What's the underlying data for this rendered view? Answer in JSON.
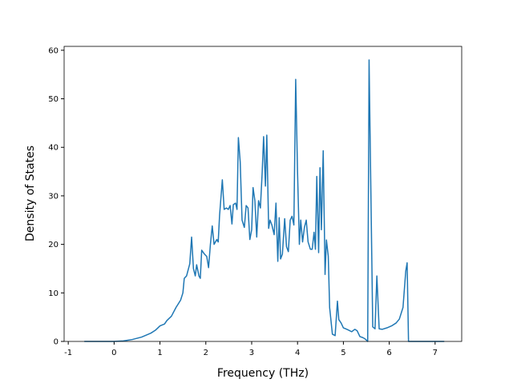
{
  "chart_data": {
    "type": "line",
    "xlabel": "Frequency (THz)",
    "ylabel": "Density of States",
    "xlim": [
      -1.09,
      7.58
    ],
    "ylim": [
      0,
      60.8
    ],
    "xticks": [
      -1,
      0,
      1,
      2,
      3,
      4,
      5,
      6,
      7
    ],
    "yticks": [
      0,
      10,
      20,
      30,
      40,
      50,
      60
    ],
    "grid": false,
    "series": [
      {
        "color": "#1f77b4",
        "x": [
          -0.65,
          0,
          0.2,
          0.4,
          0.6,
          0.8,
          0.9,
          1.0,
          1.1,
          1.15,
          1.25,
          1.35,
          1.45,
          1.5,
          1.53,
          1.58,
          1.65,
          1.69,
          1.73,
          1.77,
          1.8,
          1.85,
          1.88,
          1.91,
          1.97,
          2.02,
          2.06,
          2.1,
          2.14,
          2.18,
          2.24,
          2.27,
          2.3,
          2.36,
          2.4,
          2.45,
          2.49,
          2.53,
          2.57,
          2.6,
          2.65,
          2.68,
          2.71,
          2.75,
          2.79,
          2.84,
          2.88,
          2.92,
          2.96,
          3.0,
          3.03,
          3.07,
          3.11,
          3.15,
          3.19,
          3.23,
          3.26,
          3.3,
          3.33,
          3.37,
          3.4,
          3.44,
          3.49,
          3.53,
          3.57,
          3.6,
          3.63,
          3.67,
          3.72,
          3.76,
          3.8,
          3.84,
          3.88,
          3.92,
          3.96,
          4.0,
          4.04,
          4.07,
          4.11,
          4.15,
          4.19,
          4.23,
          4.28,
          4.32,
          4.36,
          4.39,
          4.42,
          4.46,
          4.49,
          4.52,
          4.56,
          4.6,
          4.63,
          4.67,
          4.7,
          4.76,
          4.82,
          4.87,
          4.9,
          4.95,
          5.0,
          5.05,
          5.12,
          5.18,
          5.25,
          5.3,
          5.36,
          5.42,
          5.46,
          5.5,
          5.53,
          5.56,
          5.64,
          5.69,
          5.73,
          5.78,
          5.85,
          5.95,
          6.05,
          6.15,
          6.22,
          6.3,
          6.36,
          6.39,
          6.42,
          7.2
        ],
        "values": [
          0,
          0,
          0.1,
          0.4,
          0.9,
          1.7,
          2.3,
          3.2,
          3.6,
          4.3,
          5.2,
          7,
          8.5,
          10,
          13,
          13.5,
          16,
          21.5,
          15,
          13.5,
          15.8,
          13.5,
          13,
          18.8,
          18,
          17.5,
          15.2,
          20,
          23.8,
          20,
          21,
          20.5,
          26,
          33.3,
          27.2,
          27.5,
          27.2,
          28,
          24.2,
          28.2,
          28.5,
          27.2,
          42,
          37,
          25,
          23.5,
          28,
          27.5,
          21,
          23,
          31.7,
          29,
          21.5,
          29,
          27.5,
          35,
          42.2,
          32,
          42.5,
          23.3,
          25,
          24,
          22,
          28.5,
          16.5,
          25.5,
          17,
          18,
          25.3,
          19.5,
          18.5,
          25,
          25.8,
          24,
          54,
          35,
          20,
          25,
          20.5,
          23.5,
          25,
          20.5,
          19,
          19,
          22.5,
          19,
          34,
          18.3,
          35.8,
          23,
          39.3,
          13.8,
          20.9,
          17.6,
          7,
          1.5,
          1.2,
          8.3,
          4.5,
          3.8,
          2.8,
          2.6,
          2.3,
          2.0,
          2.5,
          2.2,
          1.0,
          0.8,
          0.6,
          0.3,
          0,
          58,
          3,
          2.6,
          13.5,
          2.6,
          2.5,
          2.8,
          3.2,
          3.8,
          4.6,
          7,
          14.5,
          16.2,
          0,
          0
        ]
      }
    ]
  }
}
